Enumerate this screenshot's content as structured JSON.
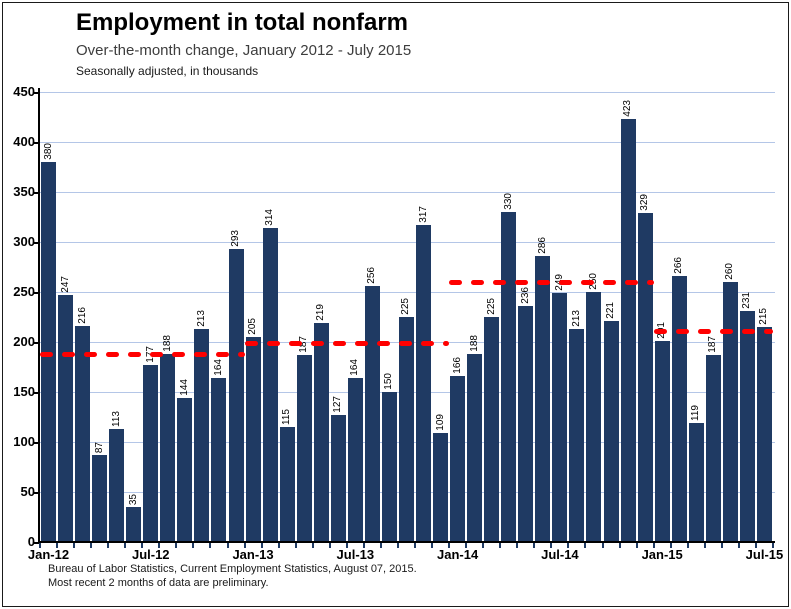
{
  "chart_data": {
    "type": "bar",
    "title": "Employment in total nonfarm",
    "subtitle": "Over-the-month change, January 2012 - July 2015",
    "note": "Seasonally adjusted, in thousands",
    "source_line1": "Bureau of Labor Statistics, Current Employment Statistics, August 07, 2015.",
    "source_line2": "Most recent 2 months of data are preliminary.",
    "categories": [
      "Jan-12",
      "Feb-12",
      "Mar-12",
      "Apr-12",
      "May-12",
      "Jun-12",
      "Jul-12",
      "Aug-12",
      "Sep-12",
      "Oct-12",
      "Nov-12",
      "Dec-12",
      "Jan-13",
      "Feb-13",
      "Mar-13",
      "Apr-13",
      "May-13",
      "Jun-13",
      "Jul-13",
      "Aug-13",
      "Sep-13",
      "Oct-13",
      "Nov-13",
      "Dec-13",
      "Jan-14",
      "Feb-14",
      "Mar-14",
      "Apr-14",
      "May-14",
      "Jun-14",
      "Jul-14",
      "Aug-14",
      "Sep-14",
      "Oct-14",
      "Nov-14",
      "Dec-14",
      "Jan-15",
      "Feb-15",
      "Mar-15",
      "Apr-15",
      "May-15",
      "Jun-15",
      "Jul-15"
    ],
    "values": [
      380,
      247,
      216,
      87,
      113,
      35,
      177,
      188,
      144,
      213,
      164,
      293,
      205,
      314,
      115,
      187,
      219,
      127,
      164,
      256,
      150,
      225,
      317,
      109,
      166,
      188,
      225,
      330,
      236,
      286,
      249,
      213,
      250,
      221,
      423,
      329,
      201,
      266,
      119,
      187,
      260,
      231,
      215
    ],
    "x_tick_labels": [
      "Jan-12",
      "Jul-12",
      "Jan-13",
      "Jul-13",
      "Jan-14",
      "Jul-14",
      "Jan-15",
      "Jul-15"
    ],
    "x_tick_indices": [
      0,
      6,
      12,
      18,
      24,
      30,
      36,
      42
    ],
    "ylim": [
      0,
      450
    ],
    "y_tick_interval": 50,
    "y_tick_values": [
      0,
      50,
      100,
      150,
      200,
      250,
      300,
      350,
      400,
      450
    ],
    "grid": true,
    "legend": "none",
    "average_dashed_lines": [
      {
        "value": 188,
        "start_index": 0,
        "end_index": 11
      },
      {
        "value": 199,
        "start_index": 12,
        "end_index": 23
      },
      {
        "value": 260,
        "start_index": 24,
        "end_index": 35
      },
      {
        "value": 211,
        "start_index": 36,
        "end_index": 42
      }
    ],
    "colors": {
      "bar": "#1F3A63",
      "grid": "#B4C6E7",
      "dash_line": "#FF0000",
      "axis": "#000000"
    }
  }
}
